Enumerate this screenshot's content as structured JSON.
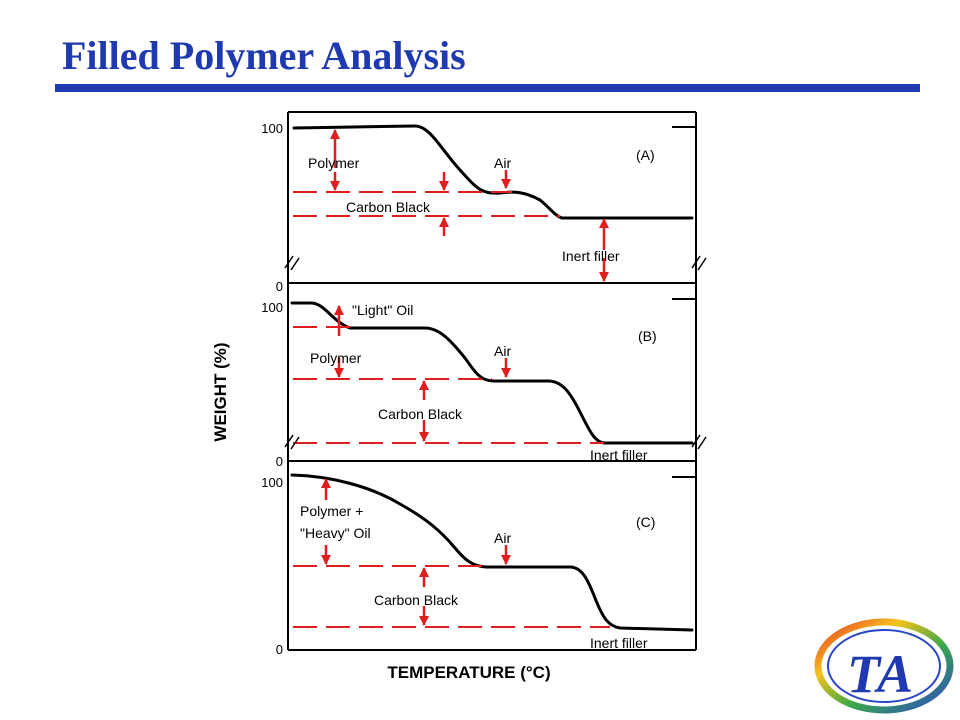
{
  "slide": {
    "title": "Filled Polymer Analysis"
  },
  "axes": {
    "x_title": "TEMPERATURE (°C)",
    "y_title": "WEIGHT (%)",
    "y_tick_top": "100",
    "y_tick_bottom": "0"
  },
  "panels": {
    "a": {
      "tag": "(A)",
      "polymer": "Polymer",
      "air": "Air",
      "carbon_black": "Carbon  Black",
      "inert_filler": "Inert filler"
    },
    "b": {
      "tag": "(B)",
      "light_oil": "\"Light\" Oil",
      "polymer": "Polymer",
      "air": "Air",
      "carbon_black": "Carbon  Black",
      "inert_filler": "Inert filler"
    },
    "c": {
      "tag": "(C)",
      "polymer_line1": "Polymer  +",
      "polymer_line2": "\"Heavy\" Oil",
      "air": "Air",
      "carbon_black": "Carbon  Black",
      "inert_filler": "Inert filler"
    }
  },
  "colors": {
    "title": "#1f3ab0",
    "marker": "#e01e1e",
    "curve": "#000000"
  },
  "logo": {
    "text": "TA"
  }
}
